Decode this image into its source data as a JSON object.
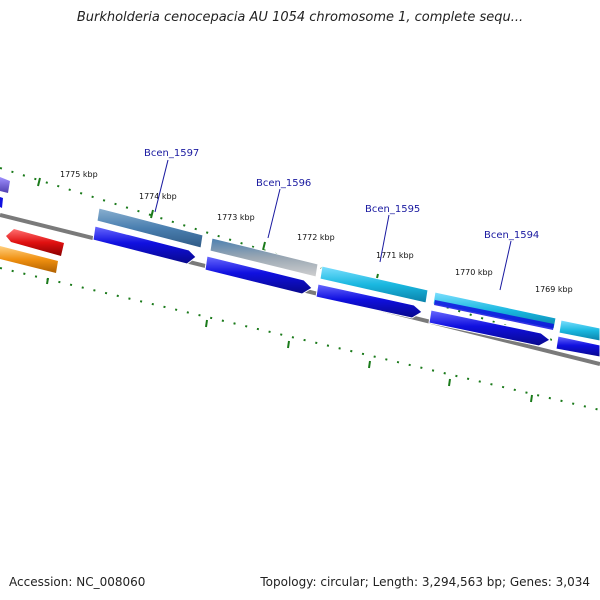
{
  "header": {
    "title": "Burkholderia cenocepacia AU 1054 chromosome 1, complete sequ..."
  },
  "footer": {
    "accession": "Accession: NC_008060",
    "summary": "Topology: circular; Length: 3,294,563 bp; Genes: 3,034"
  },
  "ruler": {
    "tick_labels": [
      "1775 kbp",
      "1774 kbp",
      "1773 kbp",
      "1772 kbp",
      "1771 kbp",
      "1770 kbp",
      "1769 kbp"
    ]
  },
  "genes": [
    {
      "name": "Bcen_1597",
      "label": "Bcen_1597",
      "color": "#4a7fb0"
    },
    {
      "name": "Bcen_1596",
      "label": "Bcen_1596",
      "color": "#4a7fb0"
    },
    {
      "name": "Bcen_1595",
      "label": "Bcen_1595",
      "color": "#1ab8e0"
    },
    {
      "name": "Bcen_1594",
      "label": "Bcen_1594",
      "color": "#1ab8e0"
    }
  ],
  "colors": {
    "backbone": "#7a7a7a",
    "cds": "#1010e0",
    "tick": "#1a7a1a",
    "gene_label": "#1a1aa0",
    "red_feature": "#e01010",
    "orange_feature": "#f09010",
    "purple_feature": "#7060d0"
  }
}
